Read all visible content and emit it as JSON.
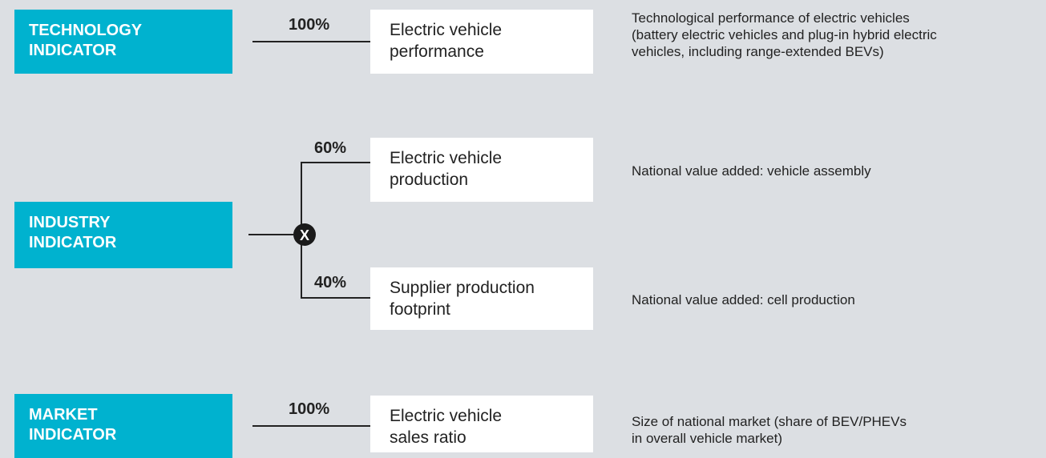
{
  "indicators": [
    {
      "label": [
        "TECHNOLOGY",
        "INDICATOR"
      ],
      "components": [
        {
          "weight": "100%",
          "name": [
            "Electric vehicle",
            "performance"
          ],
          "description": [
            "Technological performance of electric vehicles",
            "(battery electric vehicles and plug-in hybrid electric",
            "vehicles, including range-extended BEVs)"
          ]
        }
      ]
    },
    {
      "label": [
        "INDUSTRY",
        "INDICATOR"
      ],
      "operator": "X",
      "components": [
        {
          "weight": "60%",
          "name": [
            "Electric vehicle",
            "production"
          ],
          "description": [
            "National value added: vehicle assembly"
          ]
        },
        {
          "weight": "40%",
          "name": [
            "Supplier production",
            "footprint"
          ],
          "description": [
            "National value added: cell production"
          ]
        }
      ]
    },
    {
      "label": [
        "MARKET",
        "INDICATOR"
      ],
      "components": [
        {
          "weight": "100%",
          "name": [
            "Electric vehicle",
            "sales ratio"
          ],
          "description": [
            "Size of national market (share of BEV/PHEVs",
            "in overall vehicle market)"
          ]
        }
      ]
    }
  ]
}
